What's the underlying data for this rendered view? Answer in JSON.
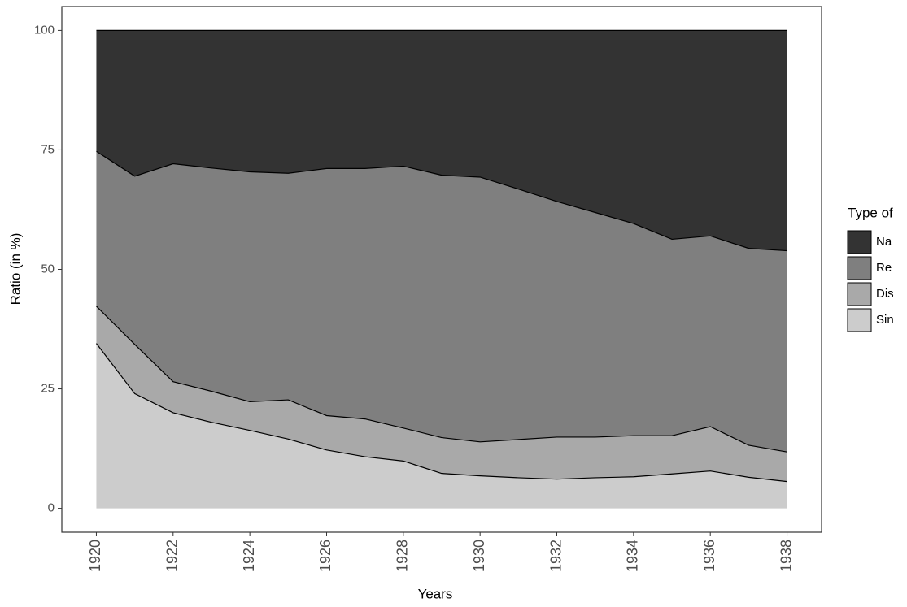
{
  "chart_data": {
    "type": "stacked_area",
    "x_label": "Years",
    "y_label": "Ratio (in %)",
    "legend_title": "Type of",
    "x": [
      1920,
      1921,
      1922,
      1923,
      1924,
      1925,
      1926,
      1927,
      1928,
      1929,
      1930,
      1931,
      1932,
      1933,
      1934,
      1935,
      1936,
      1937,
      1938
    ],
    "series": [
      {
        "name": "Na",
        "color": "#333333",
        "values": [
          25.3,
          30.5,
          27.9,
          28.8,
          29.6,
          29.9,
          28.9,
          28.9,
          28.4,
          30.3,
          30.7,
          33.2,
          35.8,
          38.1,
          40.4,
          43.7,
          43.0,
          45.6,
          46.1
        ]
      },
      {
        "name": "Re",
        "color": "#7f7f7f",
        "values": [
          32.4,
          35.2,
          45.6,
          46.7,
          48.1,
          47.4,
          51.7,
          52.4,
          54.8,
          54.9,
          55.4,
          52.4,
          49.3,
          47.0,
          44.4,
          41.1,
          39.9,
          41.2,
          42.1
        ]
      },
      {
        "name": "Dis",
        "color": "#a9a9a9",
        "values": [
          7.8,
          10.3,
          6.5,
          6.5,
          6.0,
          8.2,
          7.2,
          7.9,
          6.9,
          7.5,
          7.1,
          8.0,
          8.8,
          8.5,
          8.6,
          8.0,
          9.3,
          6.7,
          6.2
        ]
      },
      {
        "name": "Sin",
        "color": "#cccccc",
        "values": [
          34.5,
          24.0,
          20.0,
          18.0,
          16.3,
          14.5,
          12.2,
          10.8,
          9.9,
          7.3,
          6.8,
          6.4,
          6.1,
          6.4,
          6.6,
          7.2,
          7.8,
          6.5,
          5.6
        ]
      }
    ],
    "xlim": [
      1919.1,
      1938.9
    ],
    "xticks": [
      1920,
      1922,
      1924,
      1926,
      1928,
      1930,
      1932,
      1934,
      1936,
      1938
    ],
    "ylim": [
      -5,
      105
    ],
    "yticks": [
      0,
      25,
      50,
      75,
      100
    ],
    "grid": false,
    "legend": "right"
  }
}
